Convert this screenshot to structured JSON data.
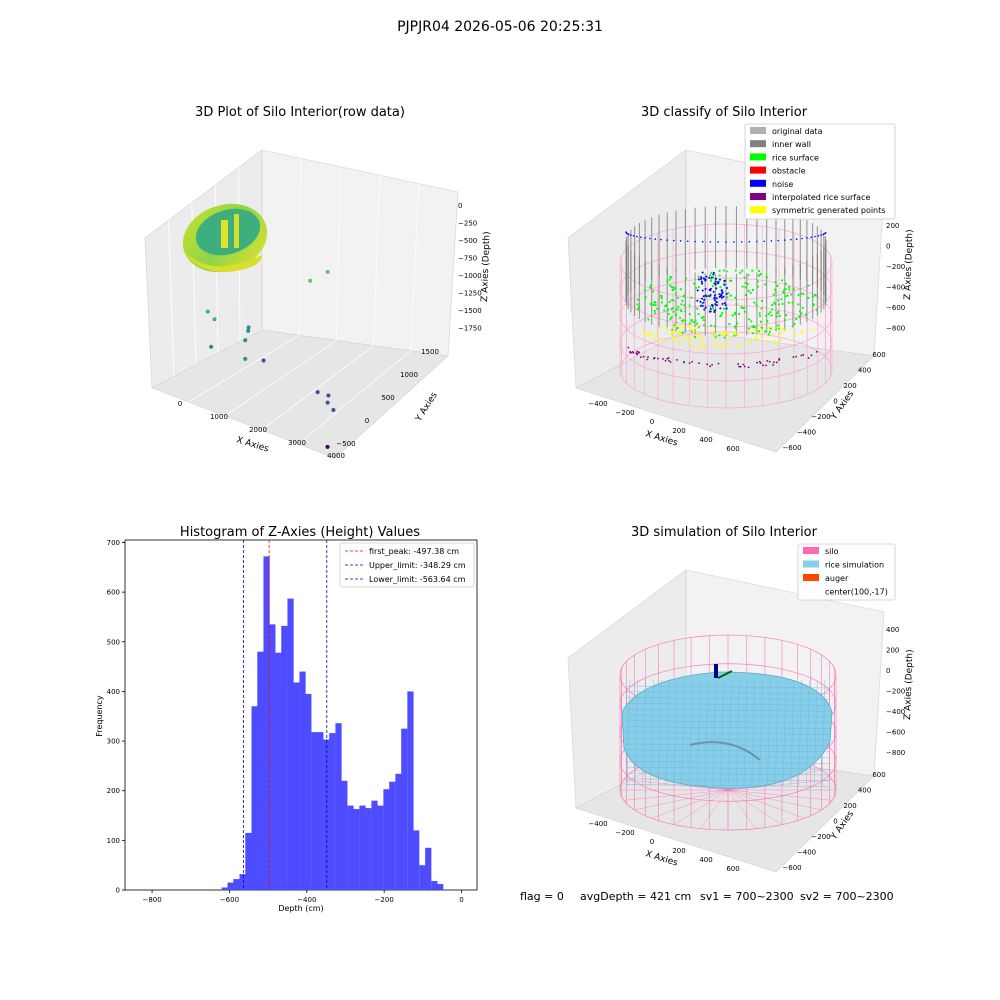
{
  "figure": {
    "suptitle": "PJPJR04 2026-05-06 20:25:31",
    "status_line": {
      "flag": "flag = 0",
      "avg_depth": "avgDepth = 421 cm",
      "sv1": "sv1 = 700~2300",
      "sv2": "sv2 = 700~2300"
    }
  },
  "chart_data": [
    {
      "type": "scatter",
      "projection": "3d",
      "title": "3D Plot of Silo Interior(row data)",
      "xlabel": "X Axies",
      "ylabel": "Y Axies",
      "zlabel": "Z Axies (Depth)",
      "x_ticks": [
        "0",
        "1000",
        "2000",
        "3000",
        "4000"
      ],
      "y_ticks": [
        "−500",
        "0",
        "500",
        "1000",
        "1500"
      ],
      "z_ticks": [
        "0",
        "−250",
        "−500",
        "−750",
        "−1000",
        "−1250",
        "−1500",
        "−1750"
      ],
      "outlier_points": [
        {
          "x": 1200,
          "y": 1400,
          "z": -900
        },
        {
          "x": 1500,
          "y": 1500,
          "z": -750
        },
        {
          "x": 300,
          "y": 100,
          "z": -1050
        },
        {
          "x": 400,
          "y": 150,
          "z": -1150
        },
        {
          "x": 800,
          "y": 500,
          "z": -1300
        },
        {
          "x": 850,
          "y": 450,
          "z": -1320
        },
        {
          "x": 900,
          "y": 350,
          "z": -1400
        },
        {
          "x": 500,
          "y": 0,
          "z": -1450
        },
        {
          "x": 1200,
          "y": 100,
          "z": -1500
        },
        {
          "x": 1400,
          "y": 300,
          "z": -1550
        },
        {
          "x": 2700,
          "y": 300,
          "z": -1700
        },
        {
          "x": 2900,
          "y": 350,
          "z": -1720
        },
        {
          "x": 3000,
          "y": 250,
          "z": -1760
        },
        {
          "x": 3200,
          "y": 200,
          "z": -1800
        },
        {
          "x": 3900,
          "y": -500,
          "z": -1900
        }
      ]
    },
    {
      "type": "scatter",
      "projection": "3d",
      "title": "3D classify of Silo Interior",
      "xlabel": "X Axies",
      "ylabel": "Y Axies",
      "zlabel": "Z Axies (Depth)",
      "x_ticks": [
        "−400",
        "−200",
        "0",
        "200",
        "400",
        "600"
      ],
      "y_ticks": [
        "−600",
        "−400",
        "−200",
        "0",
        "200",
        "400",
        "600"
      ],
      "z_ticks": [
        "200",
        "0",
        "−200",
        "−400",
        "−600",
        "−800"
      ],
      "legend_position": "top-right",
      "legend": [
        {
          "label": "original data",
          "color": "#b0b0b0"
        },
        {
          "label": "inner wall",
          "color": "#808080"
        },
        {
          "label": "rice surface",
          "color": "#00ff00"
        },
        {
          "label": "obstacle",
          "color": "#ff0000"
        },
        {
          "label": "noise",
          "color": "#0000ff"
        },
        {
          "label": "interpolated rice surface",
          "color": "#800080"
        },
        {
          "label": "symmetric generated points",
          "color": "#ffff00"
        }
      ]
    },
    {
      "type": "bar",
      "title": "Histogram of Z-Axies (Height) Values",
      "xlabel": "Depth (cm)",
      "ylabel": "Frequency",
      "xlim": [
        -870,
        40
      ],
      "ylim": [
        0,
        705
      ],
      "x_ticks": [
        "−800",
        "−600",
        "−400",
        "−200",
        "0"
      ],
      "y_ticks": [
        "0",
        "100",
        "200",
        "300",
        "400",
        "500",
        "600",
        "700"
      ],
      "bin_width": 15.5,
      "bins": [
        {
          "x": -620,
          "count": 5
        },
        {
          "x": -605,
          "count": 15
        },
        {
          "x": -590,
          "count": 22
        },
        {
          "x": -574,
          "count": 32
        },
        {
          "x": -559,
          "count": 115
        },
        {
          "x": -543,
          "count": 370
        },
        {
          "x": -528,
          "count": 480
        },
        {
          "x": -512,
          "count": 672
        },
        {
          "x": -497,
          "count": 535
        },
        {
          "x": -481,
          "count": 478
        },
        {
          "x": -466,
          "count": 532
        },
        {
          "x": -450,
          "count": 587
        },
        {
          "x": -435,
          "count": 418
        },
        {
          "x": -419,
          "count": 440
        },
        {
          "x": -404,
          "count": 395
        },
        {
          "x": -388,
          "count": 318
        },
        {
          "x": -373,
          "count": 318
        },
        {
          "x": -357,
          "count": 303
        },
        {
          "x": -342,
          "count": 316
        },
        {
          "x": -326,
          "count": 336
        },
        {
          "x": -311,
          "count": 220
        },
        {
          "x": -295,
          "count": 170
        },
        {
          "x": -280,
          "count": 163
        },
        {
          "x": -264,
          "count": 170
        },
        {
          "x": -249,
          "count": 165
        },
        {
          "x": -233,
          "count": 180
        },
        {
          "x": -218,
          "count": 170
        },
        {
          "x": -202,
          "count": 203
        },
        {
          "x": -187,
          "count": 218
        },
        {
          "x": -171,
          "count": 234
        },
        {
          "x": -156,
          "count": 325
        },
        {
          "x": -140,
          "count": 400
        },
        {
          "x": -125,
          "count": 120
        },
        {
          "x": -109,
          "count": 50
        },
        {
          "x": -94,
          "count": 85
        },
        {
          "x": -78,
          "count": 18
        },
        {
          "x": -63,
          "count": 12
        }
      ],
      "bar_color": "#4d4dff",
      "vlines": [
        {
          "label": "first_peak: -497.38 cm",
          "x": -497.38,
          "color": "#ff0000"
        },
        {
          "label": "Upper_limit: -348.29 cm",
          "x": -348.29,
          "color": "#0000cc"
        },
        {
          "label": "Lower_limit: -563.64 cm",
          "x": -563.64,
          "color": "#0000cc"
        }
      ],
      "legend_position": "top-right"
    },
    {
      "type": "surface",
      "projection": "3d",
      "title": "3D simulation of Silo Interior",
      "xlabel": "X Axies",
      "ylabel": "Y Axies",
      "zlabel": "Z Axies (Depth)",
      "x_ticks": [
        "−400",
        "−200",
        "0",
        "200",
        "400",
        "600"
      ],
      "y_ticks": [
        "−600",
        "−400",
        "−200",
        "0",
        "200",
        "400",
        "600"
      ],
      "z_ticks": [
        "400",
        "200",
        "0",
        "−200",
        "−400",
        "−600",
        "−800"
      ],
      "legend_position": "top-right",
      "legend": [
        {
          "label": "silo",
          "color": "#ff69b4"
        },
        {
          "label": "rice simulation",
          "color": "#87ceeb"
        },
        {
          "label": "auger",
          "color": "#ff4500"
        },
        {
          "label": "center(100,-17)",
          "color": ""
        }
      ]
    }
  ]
}
